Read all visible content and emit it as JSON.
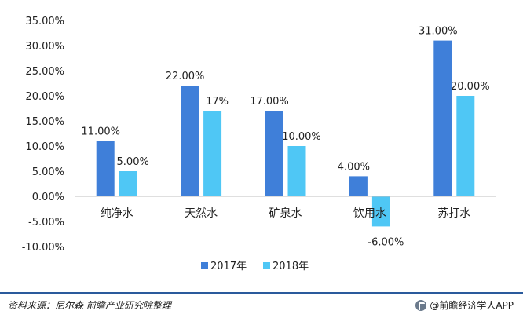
{
  "chart_data": {
    "type": "bar",
    "categories": [
      "纯净水",
      "天然水",
      "矿泉水",
      "饮用水",
      "苏打水"
    ],
    "series": [
      {
        "name": "2017年",
        "values": [
          11.0,
          22.0,
          17.0,
          4.0,
          31.0
        ],
        "labels": [
          "11.00%",
          "22.00%",
          "17.00%",
          "4.00%",
          "31.00%"
        ],
        "color": "#3f7fd9"
      },
      {
        "name": "2018年",
        "values": [
          5.0,
          17.0,
          10.0,
          -6.0,
          20.0
        ],
        "labels": [
          "5.00%",
          "17%",
          "10.00%",
          "-6.00%",
          "20.00%"
        ],
        "color": "#4fc7f5"
      }
    ],
    "ylim": [
      -10,
      35
    ],
    "yticks": [
      "35.00%",
      "30.00%",
      "25.00%",
      "20.00%",
      "15.00%",
      "10.00%",
      "5.00%",
      "0.00%",
      "-5.00%",
      "-10.00%"
    ],
    "grid": false,
    "legend_position": "bottom"
  },
  "footer": {
    "source": "资料来源：尼尔森 前瞻产业研究院整理",
    "brand": "@前瞻经济学人APP"
  }
}
